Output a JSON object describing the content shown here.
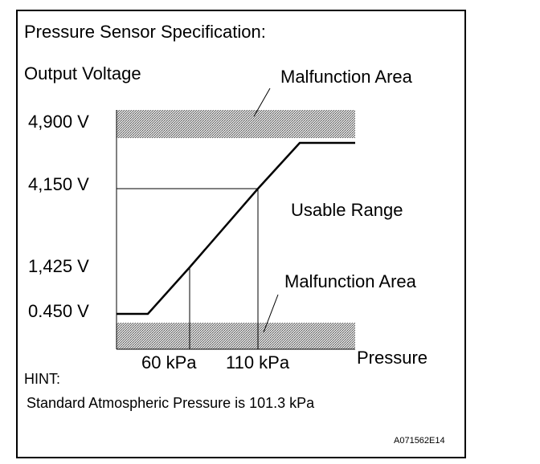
{
  "heading": "Pressure Sensor Specification:",
  "y_axis_label": "Output Voltage",
  "x_axis_label": "Pressure",
  "y_ticks": [
    "4,900 V",
    "4,150 V",
    "1,425 V",
    "0.450 V"
  ],
  "x_ticks": [
    "60 kPa",
    "110 kPa"
  ],
  "zones": {
    "upper_malfunction": "Malfunction Area",
    "usable": "Usable Range",
    "lower_malfunction": "Malfunction Area"
  },
  "hint_title": "HINT:",
  "hint_text": "Standard Atmospheric Pressure is 101.3 kPa",
  "figure_code": "A071562E14",
  "chart_data": {
    "type": "line",
    "xlabel": "Pressure",
    "ylabel": "Output Voltage",
    "series": [
      {
        "points": [
          {
            "x": "low clamp start",
            "y": 0.45
          },
          {
            "x": "60 kPa",
            "y": 1.425
          },
          {
            "x": "110 kPa",
            "y": 4.15
          },
          {
            "x": "high clamp end",
            "y": 4.9
          }
        ]
      }
    ]
  }
}
